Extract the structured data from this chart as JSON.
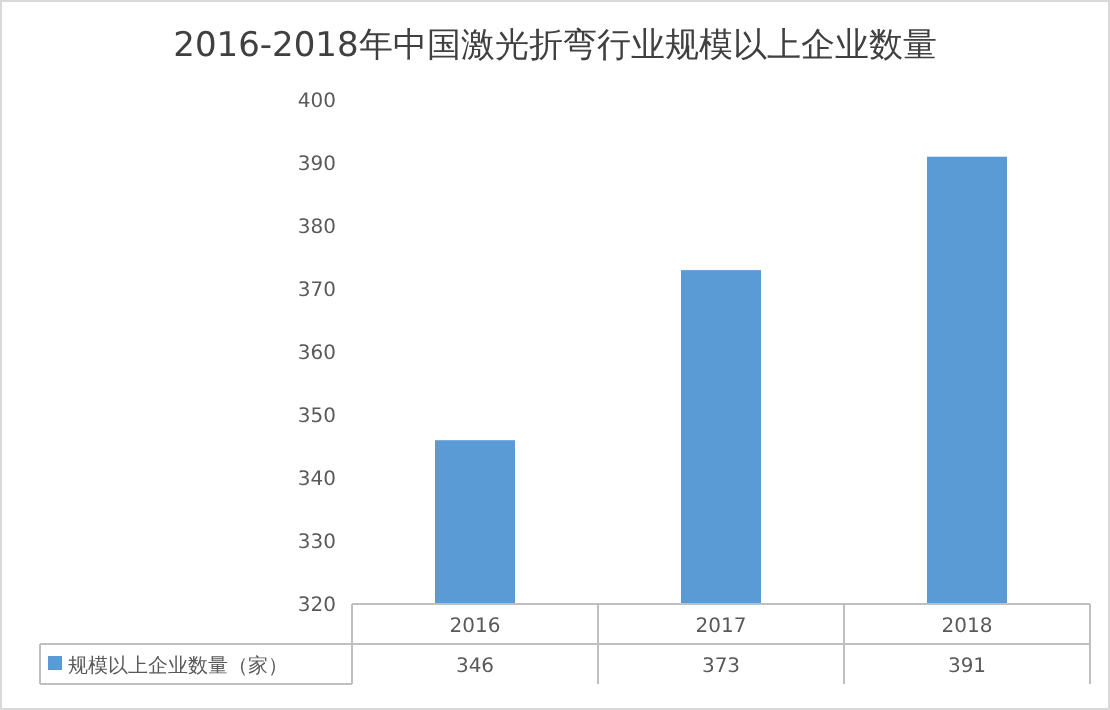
{
  "chart_data": {
    "type": "bar",
    "title": "2016-2018年中国激光折弯行业规模以上企业数量",
    "categories": [
      "2016",
      "2017",
      "2018"
    ],
    "series": [
      {
        "name": "规模以上企业数量（家）",
        "color": "#5b9bd5",
        "values": [
          346,
          373,
          391
        ]
      }
    ],
    "ylim": [
      320,
      400
    ],
    "yticks": [
      320,
      330,
      340,
      350,
      360,
      370,
      380,
      390,
      400
    ],
    "data_labels": true,
    "legend": "bottom"
  }
}
